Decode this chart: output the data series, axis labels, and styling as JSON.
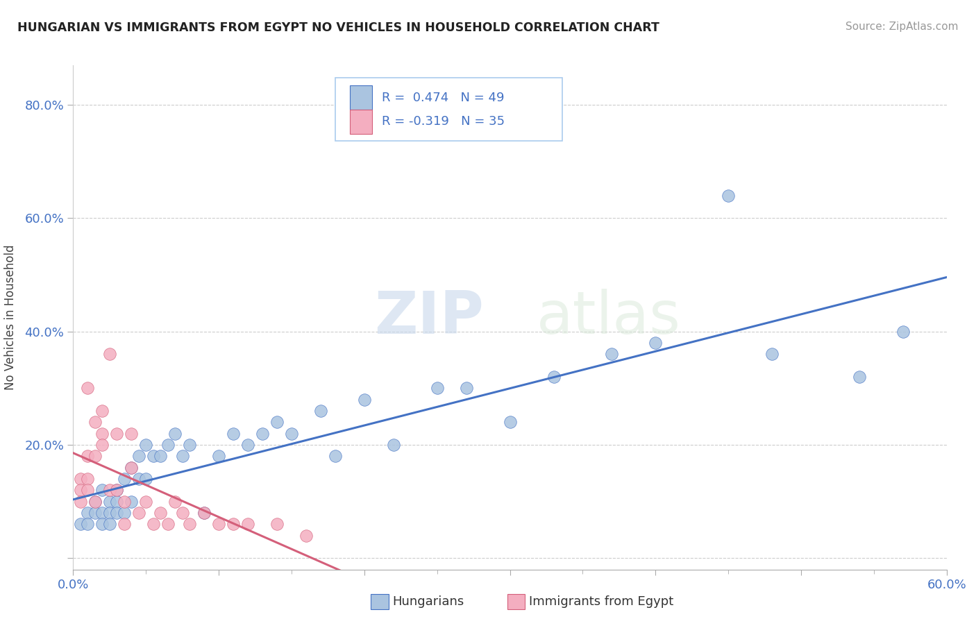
{
  "title": "HUNGARIAN VS IMMIGRANTS FROM EGYPT NO VEHICLES IN HOUSEHOLD CORRELATION CHART",
  "source": "Source: ZipAtlas.com",
  "ylabel": "No Vehicles in Household",
  "y_ticks": [
    0.0,
    0.2,
    0.4,
    0.6,
    0.8
  ],
  "y_tick_labels": [
    "",
    "20.0%",
    "40.0%",
    "60.0%",
    "80.0%"
  ],
  "xlim": [
    0.0,
    0.6
  ],
  "ylim": [
    -0.02,
    0.87
  ],
  "legend_r1": "R =  0.474",
  "legend_n1": "N = 49",
  "legend_r2": "R = -0.319",
  "legend_n2": "N = 35",
  "color_hungarian": "#aac4e0",
  "color_egypt": "#f4aec0",
  "color_line_hungarian": "#4472c4",
  "color_line_egypt": "#d45f7a",
  "watermark_zip": "ZIP",
  "watermark_atlas": "atlas",
  "background_color": "#ffffff",
  "hungarian_x": [
    0.005,
    0.01,
    0.01,
    0.015,
    0.015,
    0.02,
    0.02,
    0.02,
    0.025,
    0.025,
    0.025,
    0.03,
    0.03,
    0.03,
    0.035,
    0.035,
    0.04,
    0.04,
    0.045,
    0.045,
    0.05,
    0.05,
    0.055,
    0.06,
    0.065,
    0.07,
    0.075,
    0.08,
    0.09,
    0.1,
    0.11,
    0.12,
    0.13,
    0.14,
    0.15,
    0.17,
    0.18,
    0.2,
    0.22,
    0.25,
    0.27,
    0.3,
    0.33,
    0.37,
    0.4,
    0.45,
    0.48,
    0.54,
    0.57
  ],
  "hungarian_y": [
    0.06,
    0.08,
    0.06,
    0.1,
    0.08,
    0.12,
    0.08,
    0.06,
    0.1,
    0.08,
    0.06,
    0.12,
    0.1,
    0.08,
    0.14,
    0.08,
    0.16,
    0.1,
    0.18,
    0.14,
    0.2,
    0.14,
    0.18,
    0.18,
    0.2,
    0.22,
    0.18,
    0.2,
    0.08,
    0.18,
    0.22,
    0.2,
    0.22,
    0.24,
    0.22,
    0.26,
    0.18,
    0.28,
    0.2,
    0.3,
    0.3,
    0.24,
    0.32,
    0.36,
    0.38,
    0.64,
    0.36,
    0.32,
    0.4
  ],
  "egypt_x": [
    0.005,
    0.005,
    0.005,
    0.01,
    0.01,
    0.01,
    0.01,
    0.015,
    0.015,
    0.015,
    0.02,
    0.02,
    0.02,
    0.025,
    0.025,
    0.03,
    0.03,
    0.035,
    0.035,
    0.04,
    0.04,
    0.045,
    0.05,
    0.055,
    0.06,
    0.065,
    0.07,
    0.075,
    0.08,
    0.09,
    0.1,
    0.11,
    0.12,
    0.14,
    0.16
  ],
  "egypt_y": [
    0.14,
    0.12,
    0.1,
    0.3,
    0.18,
    0.14,
    0.12,
    0.24,
    0.18,
    0.1,
    0.26,
    0.22,
    0.2,
    0.36,
    0.12,
    0.22,
    0.12,
    0.1,
    0.06,
    0.22,
    0.16,
    0.08,
    0.1,
    0.06,
    0.08,
    0.06,
    0.1,
    0.08,
    0.06,
    0.08,
    0.06,
    0.06,
    0.06,
    0.06,
    0.04
  ],
  "line_h_x0": 0.0,
  "line_h_x1": 0.6,
  "line_e_x0": 0.0,
  "line_e_x1": 0.2
}
